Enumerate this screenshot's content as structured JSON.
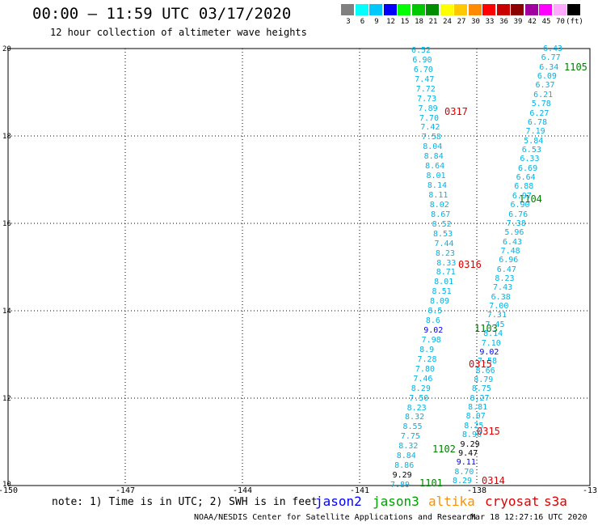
{
  "title": "00:00 – 11:59 UTC 03/17/2020",
  "subtitle": "12 hour collection of altimeter wave heights",
  "scale": {
    "colors": [
      "#808080",
      "#00ffff",
      "#00c8ff",
      "#0000ff",
      "#00ff00",
      "#00c800",
      "#008c00",
      "#ffff00",
      "#ffc800",
      "#ff8c00",
      "#ff0000",
      "#c80000",
      "#8c0000",
      "#a000a0",
      "#ff00ff",
      "#ffaaff",
      "#000000"
    ],
    "labels": [
      "3",
      "6",
      "9",
      "12",
      "15",
      "18",
      "21",
      "24",
      "27",
      "30",
      "33",
      "36",
      "39",
      "42",
      "45",
      "70",
      "(ft)"
    ]
  },
  "axes": {
    "y_labels": [
      "20",
      "18",
      "16",
      "14",
      "12",
      "10"
    ],
    "x_labels": [
      "-150",
      "-147",
      "-144",
      "-141",
      "-138",
      "-13"
    ]
  },
  "values": {
    "trackA": [
      "6.52",
      "6.90",
      "6.70",
      "7.47",
      "7.72",
      "7.73",
      "7.89",
      "7.70",
      "7.42",
      "7.58",
      "8.04",
      "8.84",
      "8.64",
      "8.01",
      "8.14",
      "8.11",
      "8.02",
      "8.67",
      "8.52",
      "8.53",
      "7.44",
      "8.23",
      "8.33",
      "8.71",
      "8.01",
      "8.51",
      "8.09",
      "8.5",
      "8.6",
      "9.02",
      "7.98",
      "8.9",
      "7.28",
      "7.80",
      "7.46",
      "8.29",
      "7.50",
      "8.23",
      "8.32",
      "8.55",
      "7.75",
      "8.32",
      "8.84",
      "8.86",
      "9.29",
      "7.89"
    ],
    "trackB": [
      "6.43",
      "6.77",
      "6.34",
      "6.09",
      "6.37",
      "6.21",
      "5.78",
      "6.27",
      "6.78",
      "7.19",
      "5.84",
      "6.53",
      "6.33",
      "6.69",
      "6.64",
      "6.88",
      "6.97",
      "6.90",
      "6.76",
      "7.38",
      "5.96",
      "6.43",
      "7.48",
      "6.96",
      "6.47",
      "8.23",
      "7.43",
      "6.38",
      "7.00",
      "7.31",
      "7.45",
      "8.14",
      "7.10",
      "9.02",
      "7.58",
      "8.66",
      "8.79",
      "8.75",
      "8.27",
      "8.81",
      "8.07",
      "8.25",
      "8.90",
      "9.29",
      "9.47",
      "9.11",
      "8.70",
      "8.29"
    ]
  },
  "tags": [
    "1105",
    "0317",
    "1104",
    "0316",
    "1103",
    "0315",
    "0315",
    "1102",
    "1101",
    "0314"
  ],
  "note": "note: 1) Time is in UTC; 2) SWH is in feet",
  "satellites": [
    "jason2",
    "jason3",
    "altika",
    "cryosat",
    "s3a"
  ],
  "footer_left": "NOAA/NESDIS Center for Satellite Applications and Research",
  "footer_right": "Mar 18 12:27:16 UTC 2020"
}
